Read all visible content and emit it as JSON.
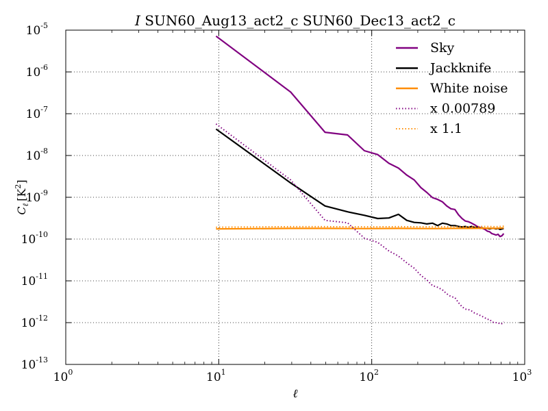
{
  "chart_data": {
    "type": "line",
    "title_italic": "I",
    "title": "SUN60_Aug13_act2_c SUN60_Dec13_act2_c",
    "xlabel": "ℓ",
    "ylabel": "C_ℓ [K²]",
    "ylabel_main": "C",
    "ylabel_sub": "ℓ",
    "ylabel_unit": "[K",
    "ylabel_unit_exp": "2",
    "ylabel_unit_close": "]",
    "x_scale": "log",
    "y_scale": "log",
    "xlim": [
      1,
      1000
    ],
    "ylim": [
      1e-13,
      1e-05
    ],
    "grid": true,
    "legend_position": "top-right",
    "x_ticks": [
      {
        "base": "10",
        "exp": "0",
        "value": 1
      },
      {
        "base": "10",
        "exp": "1",
        "value": 10
      },
      {
        "base": "10",
        "exp": "2",
        "value": 100
      },
      {
        "base": "10",
        "exp": "3",
        "value": 1000
      }
    ],
    "y_ticks": [
      {
        "base": "10",
        "exp": "-5",
        "value": 1e-05
      },
      {
        "base": "10",
        "exp": "-6",
        "value": 1e-06
      },
      {
        "base": "10",
        "exp": "-7",
        "value": 1e-07
      },
      {
        "base": "10",
        "exp": "-8",
        "value": 1e-08
      },
      {
        "base": "10",
        "exp": "-9",
        "value": 1e-09
      },
      {
        "base": "10",
        "exp": "-10",
        "value": 1e-10
      },
      {
        "base": "10",
        "exp": "-11",
        "value": 1e-11
      },
      {
        "base": "10",
        "exp": "-12",
        "value": 1e-12
      },
      {
        "base": "10",
        "exp": "-13",
        "value": 1e-13
      }
    ],
    "series": [
      {
        "name": "Sky",
        "color": "#800080",
        "style": "solid",
        "points": [
          [
            9.6,
            7.2e-06
          ],
          [
            29.5,
            3.3e-07
          ],
          [
            49.5,
            3.6e-08
          ],
          [
            69.5,
            3.1e-08
          ],
          [
            89.5,
            1.3e-08
          ],
          [
            109.5,
            1.05e-08
          ],
          [
            129.5,
            6.5e-09
          ],
          [
            149.5,
            5e-09
          ],
          [
            169.5,
            3.4e-09
          ],
          [
            189.5,
            2.6e-09
          ],
          [
            209.5,
            1.7e-09
          ],
          [
            229.5,
            1.3e-09
          ],
          [
            249.5,
            9.8e-10
          ],
          [
            269.5,
            8.9e-10
          ],
          [
            289.5,
            7.8e-10
          ],
          [
            309.5,
            6.2e-10
          ],
          [
            329.5,
            5.3e-10
          ],
          [
            349.5,
            5.1e-10
          ],
          [
            369.5,
            3.8e-10
          ],
          [
            389.5,
            3.1e-10
          ],
          [
            409.5,
            2.7e-10
          ],
          [
            429.5,
            2.6e-10
          ],
          [
            449.5,
            2.4e-10
          ],
          [
            469.5,
            2.2e-10
          ],
          [
            489.5,
            2e-10
          ],
          [
            509.5,
            1.9e-10
          ],
          [
            529.5,
            1.8e-10
          ],
          [
            549.5,
            1.7e-10
          ],
          [
            569.5,
            1.55e-10
          ],
          [
            589.5,
            1.5e-10
          ],
          [
            609.5,
            1.35e-10
          ],
          [
            629.5,
            1.3e-10
          ],
          [
            649.5,
            1.25e-10
          ],
          [
            669.5,
            1.3e-10
          ],
          [
            689.5,
            1.15e-10
          ],
          [
            709.5,
            1.2e-10
          ],
          [
            729.5,
            1.35e-10
          ]
        ]
      },
      {
        "name": "Jackknife",
        "color": "#000000",
        "style": "solid",
        "points": [
          [
            9.6,
            4.3e-08
          ],
          [
            29.5,
            2.2e-09
          ],
          [
            49.5,
            6.2e-10
          ],
          [
            69.5,
            4.5e-10
          ],
          [
            89.5,
            3.7e-10
          ],
          [
            109.5,
            3.1e-10
          ],
          [
            129.5,
            3.2e-10
          ],
          [
            149.5,
            3.9e-10
          ],
          [
            169.5,
            2.8e-10
          ],
          [
            189.5,
            2.5e-10
          ],
          [
            209.5,
            2.45e-10
          ],
          [
            229.5,
            2.3e-10
          ],
          [
            249.5,
            2.4e-10
          ],
          [
            269.5,
            2.1e-10
          ],
          [
            289.5,
            2.4e-10
          ],
          [
            309.5,
            2.3e-10
          ],
          [
            329.5,
            2.1e-10
          ],
          [
            349.5,
            2.1e-10
          ],
          [
            369.5,
            2e-10
          ],
          [
            389.5,
            1.95e-10
          ],
          [
            409.5,
            2e-10
          ],
          [
            429.5,
            1.9e-10
          ],
          [
            449.5,
            2e-10
          ],
          [
            469.5,
            1.9e-10
          ],
          [
            489.5,
            1.9e-10
          ],
          [
            509.5,
            1.8e-10
          ],
          [
            529.5,
            1.85e-10
          ],
          [
            549.5,
            1.8e-10
          ],
          [
            569.5,
            1.8e-10
          ],
          [
            589.5,
            1.75e-10
          ],
          [
            609.5,
            1.8e-10
          ],
          [
            629.5,
            1.8e-10
          ],
          [
            649.5,
            1.75e-10
          ],
          [
            669.5,
            1.8e-10
          ],
          [
            689.5,
            1.7e-10
          ],
          [
            709.5,
            1.75e-10
          ],
          [
            729.5,
            1.8e-10
          ]
        ]
      },
      {
        "name": "White noise",
        "color": "#FF8C00",
        "style": "solid",
        "points": [
          [
            9.6,
            1.75e-10
          ],
          [
            29.5,
            1.8e-10
          ],
          [
            49.5,
            1.8e-10
          ],
          [
            89.5,
            1.78e-10
          ],
          [
            149.5,
            1.8e-10
          ],
          [
            249.5,
            1.78e-10
          ],
          [
            349.5,
            1.8e-10
          ],
          [
            449.5,
            1.8e-10
          ],
          [
            549.5,
            1.82e-10
          ],
          [
            649.5,
            1.8e-10
          ],
          [
            729.5,
            1.85e-10
          ]
        ]
      },
      {
        "name": "x 0.00789",
        "color": "#800080",
        "style": "dotted",
        "points": [
          [
            9.6,
            5.7e-08
          ],
          [
            29.5,
            2.6e-09
          ],
          [
            49.5,
            2.8e-10
          ],
          [
            69.5,
            2.45e-10
          ],
          [
            89.5,
            1.05e-10
          ],
          [
            109.5,
            8.3e-11
          ],
          [
            129.5,
            5.2e-11
          ],
          [
            149.5,
            3.9e-11
          ],
          [
            169.5,
            2.7e-11
          ],
          [
            189.5,
            2e-11
          ],
          [
            209.5,
            1.35e-11
          ],
          [
            229.5,
            1.05e-11
          ],
          [
            249.5,
            7.7e-12
          ],
          [
            269.5,
            7e-12
          ],
          [
            289.5,
            6.1e-12
          ],
          [
            309.5,
            4.9e-12
          ],
          [
            329.5,
            4.2e-12
          ],
          [
            349.5,
            4e-12
          ],
          [
            369.5,
            3e-12
          ],
          [
            389.5,
            2.4e-12
          ],
          [
            409.5,
            2.1e-12
          ],
          [
            429.5,
            2.05e-12
          ],
          [
            449.5,
            1.9e-12
          ],
          [
            469.5,
            1.7e-12
          ],
          [
            489.5,
            1.6e-12
          ],
          [
            509.5,
            1.5e-12
          ],
          [
            529.5,
            1.4e-12
          ],
          [
            549.5,
            1.3e-12
          ],
          [
            569.5,
            1.2e-12
          ],
          [
            589.5,
            1.2e-12
          ],
          [
            609.5,
            1.05e-12
          ],
          [
            629.5,
            1e-12
          ],
          [
            649.5,
            1e-12
          ],
          [
            669.5,
            1e-12
          ],
          [
            689.5,
            9.2e-13
          ],
          [
            709.5,
            9.5e-13
          ],
          [
            729.5,
            1.05e-12
          ]
        ]
      },
      {
        "name": "x 1.1",
        "color": "#FF8C00",
        "style": "dotted",
        "points": [
          [
            9.6,
            1.92e-10
          ],
          [
            29.5,
            1.98e-10
          ],
          [
            49.5,
            1.98e-10
          ],
          [
            89.5,
            1.96e-10
          ],
          [
            149.5,
            1.98e-10
          ],
          [
            249.5,
            1.96e-10
          ],
          [
            349.5,
            1.98e-10
          ],
          [
            449.5,
            1.98e-10
          ],
          [
            549.5,
            2e-10
          ],
          [
            649.5,
            1.98e-10
          ],
          [
            729.5,
            2.03e-10
          ]
        ]
      }
    ]
  }
}
